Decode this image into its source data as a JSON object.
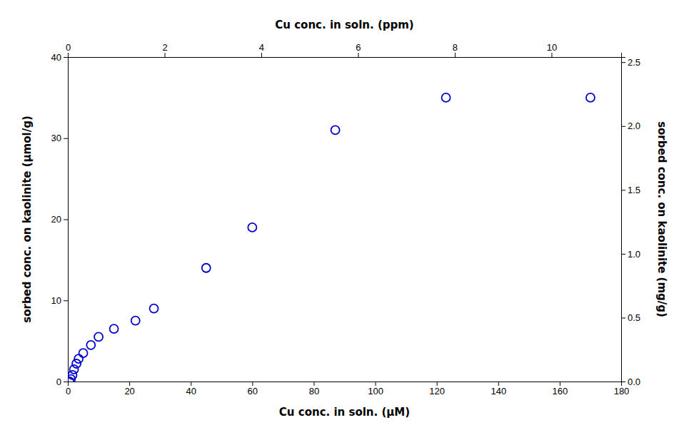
{
  "chart_data": {
    "type": "scatter",
    "x": [
      0.5,
      1.0,
      1.5,
      2.0,
      2.8,
      3.5,
      5.0,
      7.5,
      10.0,
      15.0,
      22.0,
      28.0,
      45.0,
      60.0,
      87.0,
      123.0,
      170.0
    ],
    "values": [
      0.0,
      0.3,
      0.8,
      1.5,
      2.2,
      2.8,
      3.5,
      4.5,
      5.5,
      6.5,
      7.5,
      9.0,
      14.0,
      19.0,
      31.0,
      35.0,
      35.0
    ],
    "color": "#0000CC",
    "marker": "circle-open",
    "x_label": "Cu conc. in soln. (μM)",
    "x2_label": "Cu conc. in soln. (ppm)",
    "y_label": "sorbed conc. on kaolinite (μmol/g)",
    "y2_label": "sorbed conc. on kaolinite (mg/g)",
    "xlim": [
      0,
      180
    ],
    "xticks": [
      0,
      20,
      40,
      60,
      80,
      100,
      120,
      140,
      160,
      180
    ],
    "x2lim": [
      0,
      11.44
    ],
    "x2ticks": [
      0,
      2,
      4,
      6,
      8,
      10
    ],
    "ylim": [
      0,
      40
    ],
    "yticks": [
      0,
      10,
      20,
      30,
      40
    ],
    "y2lim": [
      0.0,
      2.54
    ],
    "y2ticks": [
      {
        "value": 0.0,
        "label": "0.0"
      },
      0.5,
      {
        "value": 1.0,
        "label": "1.0"
      },
      1.5,
      {
        "value": 2.0,
        "label": "2.0"
      },
      2.5
    ],
    "grid": false
  }
}
